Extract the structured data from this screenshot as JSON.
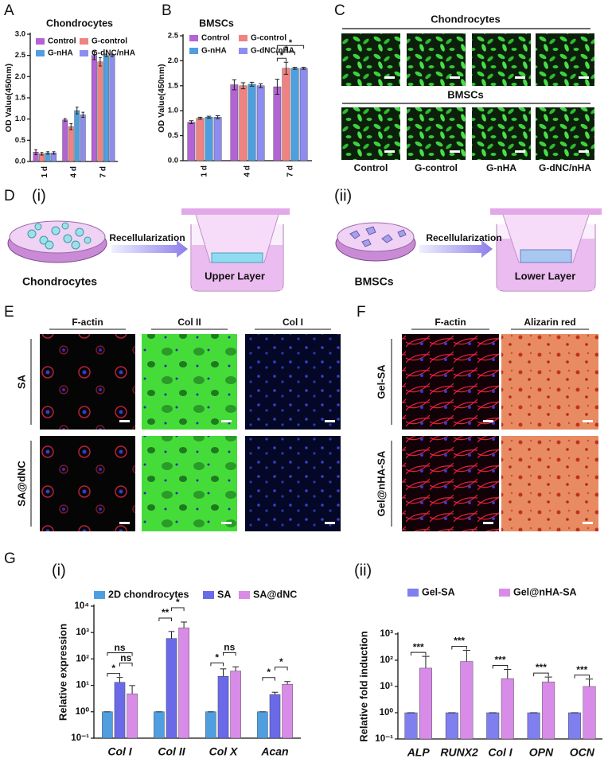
{
  "chart_data": [
    {
      "type": "bar",
      "panel": "A",
      "title": "Chondrocytes",
      "y_label": "OD Value(450nm)",
      "categories": [
        "1 d",
        "4 d",
        "7 d"
      ],
      "series": [
        {
          "name": "Control",
          "color": "#b463d4",
          "values": [
            0.22,
            0.98,
            2.5
          ],
          "errors": [
            0.06,
            0.03,
            0.1
          ]
        },
        {
          "name": "G-control",
          "color": "#f08282",
          "values": [
            0.18,
            0.82,
            2.35
          ],
          "errors": [
            0.03,
            0.07,
            0.1
          ]
        },
        {
          "name": "G-nHA",
          "color": "#4f9fe0",
          "values": [
            0.2,
            1.2,
            2.5
          ],
          "errors": [
            0.03,
            0.08,
            0.03
          ]
        },
        {
          "name": "G-dNC/nHA",
          "color": "#8d8df0",
          "values": [
            0.2,
            1.1,
            2.5
          ],
          "errors": [
            0.03,
            0.06,
            0.03
          ]
        }
      ],
      "ylim": [
        0,
        3
      ],
      "yticks": [
        {
          "value": 0,
          "label": "0.0"
        },
        0.5,
        {
          "value": 1,
          "label": "1.0"
        },
        1.5,
        {
          "value": 2,
          "label": "2.0"
        },
        2.5,
        {
          "value": 3,
          "label": "3.0"
        }
      ]
    },
    {
      "type": "bar",
      "panel": "B",
      "title": "BMSCs",
      "y_label": "OD Value(450nm)",
      "categories": [
        "1 d",
        "4 d",
        "7 d"
      ],
      "series": [
        {
          "name": "Control",
          "color": "#b463d4",
          "values": [
            0.77,
            1.52,
            1.48
          ],
          "errors": [
            0.03,
            0.1,
            0.15
          ]
        },
        {
          "name": "G-control",
          "color": "#f08282",
          "values": [
            0.85,
            1.5,
            1.85
          ],
          "errors": [
            0.02,
            0.06,
            0.12
          ]
        },
        {
          "name": "G-nHA",
          "color": "#4f9fe0",
          "values": [
            0.87,
            1.53,
            1.85
          ],
          "errors": [
            0.02,
            0.04,
            0.02
          ]
        },
        {
          "name": "G-dNC/nHA",
          "color": "#8d8df0",
          "values": [
            0.87,
            1.5,
            1.85
          ],
          "errors": [
            0.03,
            0.04,
            0.02
          ]
        }
      ],
      "significance": [
        "*",
        "*",
        "*"
      ],
      "ylim": [
        0,
        2.5
      ],
      "yticks": [
        {
          "value": 0,
          "label": "0.0"
        },
        0.5,
        {
          "value": 1,
          "label": "1.0"
        },
        1.5,
        {
          "value": 2,
          "label": "2.0"
        },
        2.5
      ]
    },
    {
      "type": "bar",
      "panel": "(i)",
      "y_label": "Relative expression",
      "log_scale": true,
      "categories": [
        "Col I",
        "Col II",
        "Col X",
        "Acan"
      ],
      "series": [
        {
          "name": "2D chondrocytes",
          "color": "#4f9fe0",
          "values": [
            1,
            1,
            1,
            1
          ],
          "errors": [
            0,
            0,
            0,
            0
          ]
        },
        {
          "name": "SA",
          "color": "#6a6ae8",
          "values": [
            13,
            600,
            22,
            4.5
          ],
          "errors": [
            7,
            500,
            20,
            1
          ]
        },
        {
          "name": "SA@dNC",
          "color": "#d88ce8",
          "values": [
            4.8,
            1500,
            35,
            11
          ],
          "errors": [
            5,
            1000,
            15,
            3
          ]
        }
      ],
      "significance": [
        "*",
        "ns",
        "ns",
        "**",
        "*",
        "*",
        "ns",
        "*",
        "*"
      ],
      "ylim": [
        0.1,
        10000
      ],
      "yticks": [
        {
          "value": 0.1,
          "label": "10⁻¹"
        },
        {
          "value": 1,
          "label": "10⁰"
        },
        {
          "value": 10,
          "label": "10¹"
        },
        {
          "value": 100,
          "label": "10²"
        },
        {
          "value": 1000,
          "label": "10³"
        },
        {
          "value": 10000,
          "label": "10⁴"
        }
      ]
    },
    {
      "type": "bar",
      "panel": "(ii)",
      "y_label": "Relative fold induction",
      "log_scale": true,
      "categories": [
        "ALP",
        "RUNX2",
        "Col I",
        "OPN",
        "OCN"
      ],
      "series": [
        {
          "name": "Gel-SA",
          "color": "#7f7ff0",
          "values": [
            1,
            1,
            1,
            1,
            1
          ],
          "errors": [
            0,
            0,
            0,
            0,
            0
          ]
        },
        {
          "name": "Gel@nHA-SA",
          "color": "#d88ce8",
          "values": [
            50,
            90,
            20,
            15,
            10
          ],
          "errors": [
            90,
            150,
            25,
            8,
            9
          ]
        }
      ],
      "significance": [
        "***",
        "***",
        "***",
        "***",
        "***"
      ],
      "ylim": [
        0.1,
        1000
      ],
      "yticks": [
        {
          "value": 0.1,
          "label": "10⁻¹"
        },
        {
          "value": 1,
          "label": "10⁰"
        },
        {
          "value": 10,
          "label": "10¹"
        },
        {
          "value": 100,
          "label": "10²"
        },
        {
          "value": 1000,
          "label": "10³"
        }
      ]
    }
  ],
  "panel_c": {
    "label": "C",
    "rows": [
      "Chondrocytes",
      "BMSCs"
    ],
    "columns": [
      "Control",
      "G-control",
      "G-nHA",
      "G-dNC/nHA"
    ]
  },
  "panel_d": {
    "label": "D",
    "left": {
      "tag": "(i)",
      "arrow": "Recellularization",
      "cells": "Chondrocytes",
      "layer": "Upper Layer"
    },
    "right": {
      "tag": "(ii)",
      "arrow": "Recellularization",
      "cells": "BMSCs",
      "layer": "Lower Layer"
    }
  },
  "panel_e": {
    "label": "E",
    "columns": [
      "F-actin",
      "Col II",
      "Col I"
    ],
    "rows": [
      "SA",
      "SA@dNC"
    ]
  },
  "panel_f": {
    "label": "F",
    "columns": [
      "F-actin",
      "Alizarin red"
    ],
    "rows": [
      "Gel-SA",
      "Gel@nHA-SA"
    ]
  },
  "panel_g": {
    "label": "G"
  }
}
